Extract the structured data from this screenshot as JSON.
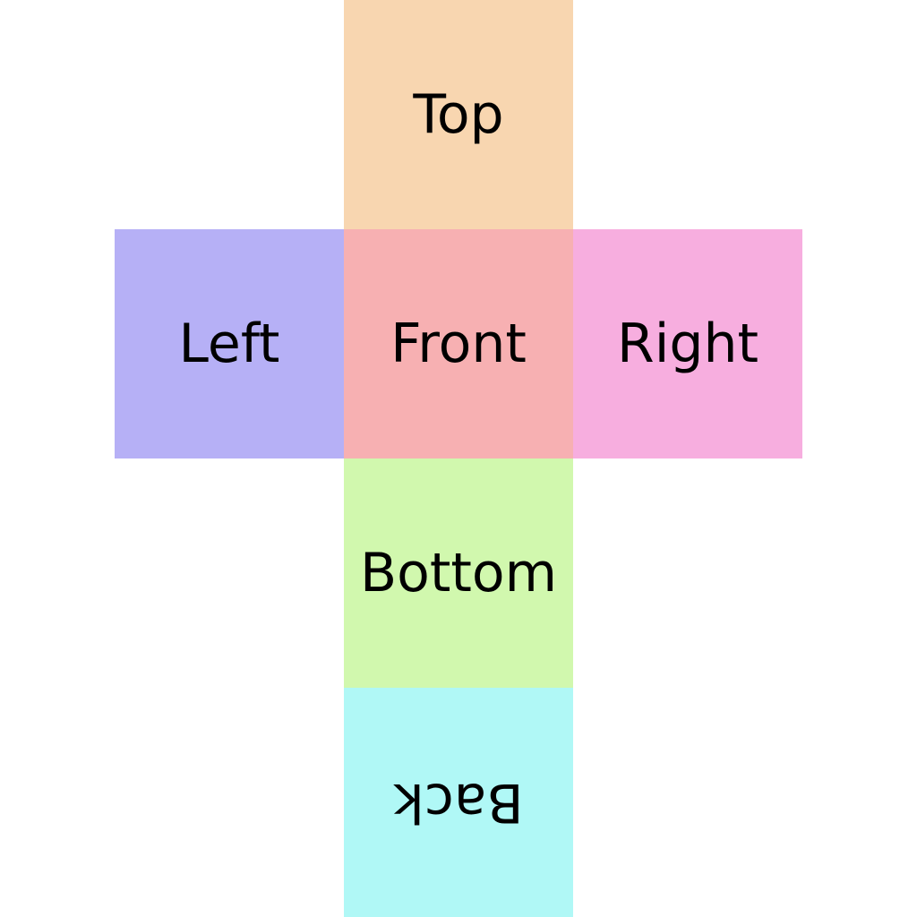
{
  "faces": {
    "top": {
      "label": "Top",
      "color": "#f8d6b0"
    },
    "left": {
      "label": "Left",
      "color": "#b6b0f6"
    },
    "front": {
      "label": "Front",
      "color": "#f7b0b2"
    },
    "right": {
      "label": "Right",
      "color": "#f7aedf"
    },
    "bottom": {
      "label": "Bottom",
      "color": "#d1f8ae"
    },
    "back": {
      "label": "Back",
      "color": "#b0f8f6",
      "text_orientation": "upside-down"
    }
  }
}
